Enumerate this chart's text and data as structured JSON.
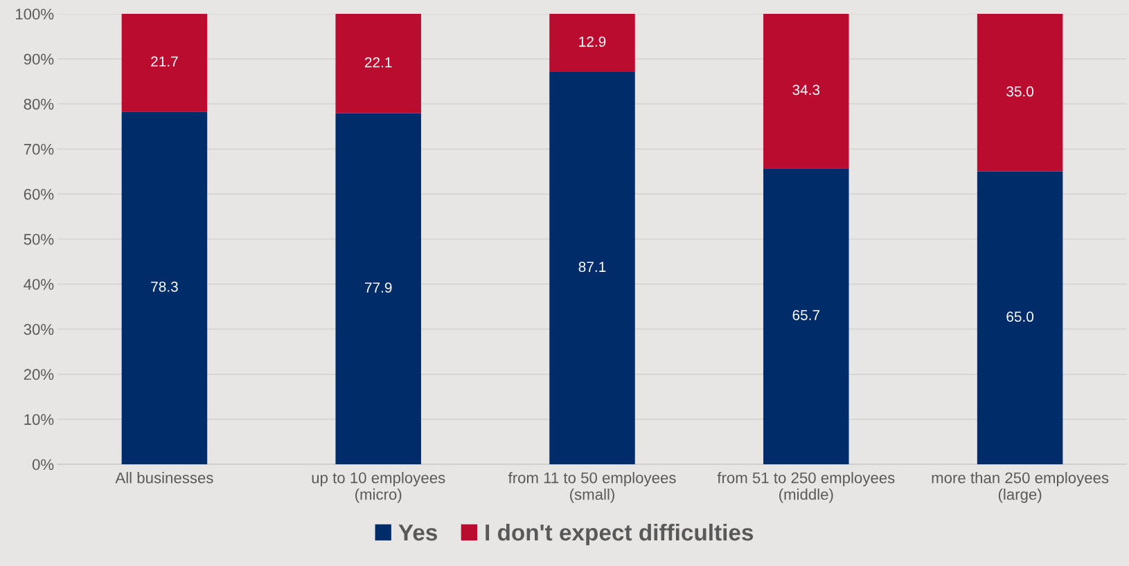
{
  "chart_data": {
    "type": "bar",
    "stacked": true,
    "categories": [
      "All businesses",
      "up to 10 employees\n(micro)",
      "from 11 to 50 employees\n(small)",
      "from 51 to 250 employees\n(middle)",
      "more than 250 employees\n(large)"
    ],
    "series": [
      {
        "name": "Yes",
        "color": "#002d6a",
        "values": [
          78.3,
          77.9,
          87.1,
          65.7,
          65.0
        ],
        "value_labels": [
          "78.3",
          "77.9",
          "87.1",
          "65.7",
          "65.0"
        ]
      },
      {
        "name": "I don't expect difficulties",
        "color": "#ba0c2f",
        "values": [
          21.7,
          22.1,
          12.9,
          34.3,
          35.0
        ],
        "value_labels": [
          "21.7",
          "22.1",
          "12.9",
          "34.3",
          "35.0"
        ]
      }
    ],
    "ylim": [
      0,
      100
    ],
    "yticks": [
      {
        "value": 0,
        "label": "0%"
      },
      {
        "value": 10,
        "label": "10%"
      },
      {
        "value": 20,
        "label": "20%"
      },
      {
        "value": 30,
        "label": "30%"
      },
      {
        "value": 40,
        "label": "40%"
      },
      {
        "value": 50,
        "label": "50%"
      },
      {
        "value": 60,
        "label": "60%"
      },
      {
        "value": 70,
        "label": "70%"
      },
      {
        "value": 80,
        "label": "80%"
      },
      {
        "value": 90,
        "label": "90%"
      },
      {
        "value": 100,
        "label": "100%"
      }
    ],
    "grid": "y",
    "legend": "bottom"
  }
}
